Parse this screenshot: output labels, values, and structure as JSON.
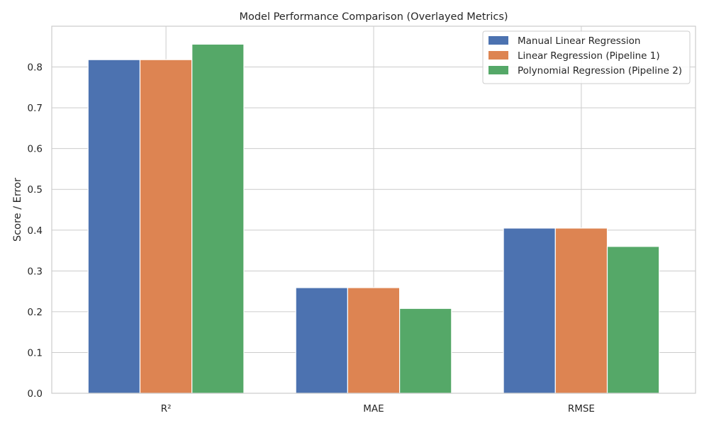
{
  "chart_data": {
    "type": "bar",
    "title": "Model Performance Comparison (Overlayed Metrics)",
    "xlabel": "",
    "ylabel": "Score / Error",
    "categories": [
      "R²",
      "MAE",
      "RMSE"
    ],
    "ylim": [
      0,
      0.9
    ],
    "yticks": [
      0.0,
      0.1,
      0.2,
      0.3,
      0.4,
      0.5,
      0.6,
      0.7,
      0.8
    ],
    "ytick_labels": [
      "0.0",
      "0.1",
      "0.2",
      "0.3",
      "0.4",
      "0.5",
      "0.6",
      "0.7",
      "0.8"
    ],
    "grid": true,
    "legend_position": "top-right",
    "series": [
      {
        "name": "Manual Linear Regression",
        "color": "#4c72b0",
        "values": [
          0.818,
          0.259,
          0.405
        ]
      },
      {
        "name": "Linear Regression (Pipeline 1)",
        "color": "#dd8452",
        "values": [
          0.818,
          0.259,
          0.405
        ]
      },
      {
        "name": "Polynomial Regression (Pipeline 2)",
        "color": "#55a868",
        "values": [
          0.856,
          0.208,
          0.36
        ]
      }
    ]
  }
}
